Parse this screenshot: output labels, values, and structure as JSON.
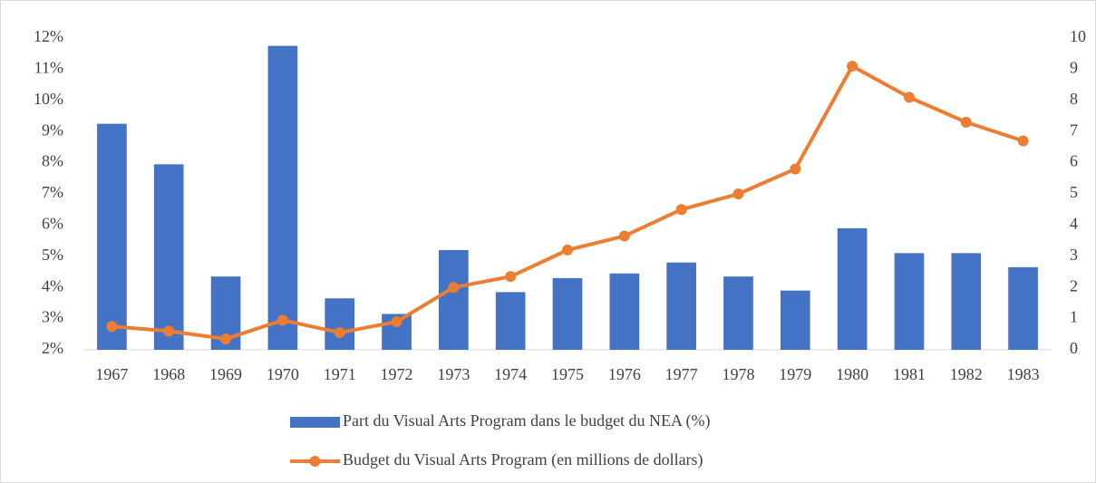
{
  "chart_data": {
    "type": "combo",
    "categories": [
      "1967",
      "1968",
      "1969",
      "1970",
      "1971",
      "1972",
      "1973",
      "1974",
      "1975",
      "1976",
      "1977",
      "1978",
      "1979",
      "1980",
      "1981",
      "1982",
      "1983"
    ],
    "series": [
      {
        "name": "Part du Visual Arts Program dans le budget du NEA (%)",
        "type": "bar",
        "color": "#4472c4",
        "values": [
          9.25,
          7.95,
          4.35,
          11.75,
          3.65,
          3.15,
          5.2,
          3.85,
          4.3,
          4.45,
          4.8,
          4.35,
          3.9,
          5.9,
          5.1,
          5.1,
          4.65
        ]
      },
      {
        "name": "Budget du Visual Arts Program (en millions de dollars)",
        "type": "line",
        "axis": "y2",
        "color": "#ed7d31",
        "values": [
          0.75,
          0.6,
          0.35,
          0.95,
          0.55,
          0.9,
          2.0,
          2.35,
          3.2,
          3.65,
          4.5,
          5.0,
          5.8,
          9.1,
          8.1,
          7.3,
          6.7
        ]
      }
    ],
    "ylim": [
      2,
      12
    ],
    "yticks": [
      {
        "value": 2,
        "label": "2%"
      },
      {
        "value": 3,
        "label": "3%"
      },
      {
        "value": 4,
        "label": "4%"
      },
      {
        "value": 5,
        "label": "5%"
      },
      {
        "value": 6,
        "label": "6%"
      },
      {
        "value": 7,
        "label": "7%"
      },
      {
        "value": 8,
        "label": "8%"
      },
      {
        "value": 9,
        "label": "9%"
      },
      {
        "value": 10,
        "label": "10%"
      },
      {
        "value": 11,
        "label": "11%"
      },
      {
        "value": 12,
        "label": "12%"
      }
    ],
    "y2lim": [
      0,
      10
    ],
    "y2ticks": [
      0,
      1,
      2,
      3,
      4,
      5,
      6,
      7,
      8,
      9,
      10
    ],
    "grid": false,
    "legend": "bottom"
  }
}
